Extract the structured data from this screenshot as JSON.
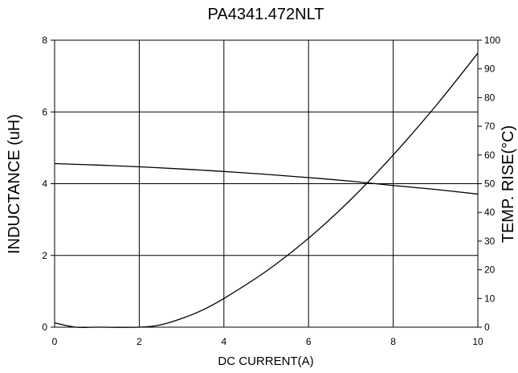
{
  "chart_data": {
    "type": "line",
    "title": "PA4341.472NLT",
    "xlabel": "DC CURRENT(A)",
    "ylabel": "INDUCTANCE (uH)",
    "y2label": "TEMP. RISE(°C)",
    "xlim": [
      0,
      10
    ],
    "ylim": [
      0,
      8
    ],
    "y2lim": [
      0,
      100
    ],
    "x_ticks": [
      "0",
      "2",
      "4",
      "6",
      "8",
      "10"
    ],
    "y_ticks": [
      "0",
      "2",
      "4",
      "6",
      "8"
    ],
    "y2_ticks": [
      "0",
      "10",
      "20",
      "30",
      "40",
      "50",
      "60",
      "70",
      "80",
      "90",
      "100"
    ],
    "grid": true,
    "series": [
      {
        "axis": "left",
        "x": [
          0,
          1,
          2,
          3,
          4,
          5,
          6,
          7,
          8,
          9,
          10
        ],
        "y": [
          4.56,
          4.52,
          4.47,
          4.41,
          4.34,
          4.26,
          4.17,
          4.07,
          3.95,
          3.84,
          3.71
        ]
      },
      {
        "axis": "right",
        "x": [
          0,
          0.5,
          1,
          2,
          2.5,
          3,
          3.5,
          4,
          5,
          6,
          7,
          8,
          9,
          10
        ],
        "y": [
          1.5,
          0,
          0,
          0,
          0.8,
          3,
          6,
          10,
          19.5,
          31,
          44.5,
          60,
          77,
          95.5
        ]
      }
    ]
  }
}
